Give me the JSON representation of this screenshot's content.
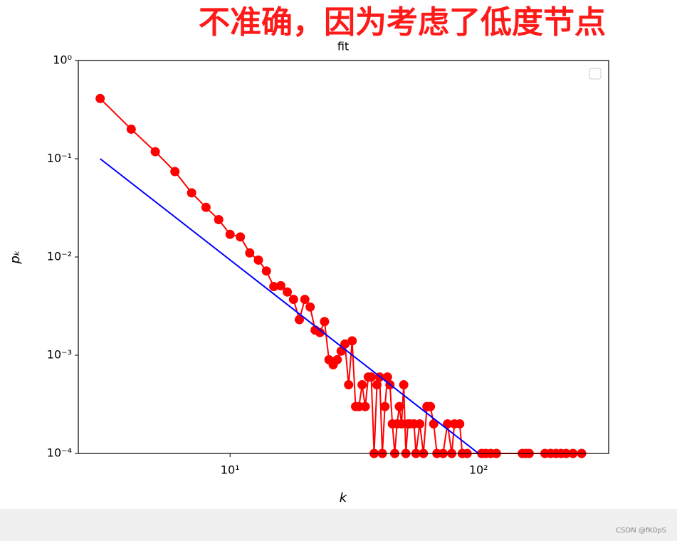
{
  "annotation": "不准确，因为考虑了低度节点",
  "watermark": "CSDN @fK0pS",
  "chart_data": {
    "type": "line",
    "title": "fit",
    "x_label": "k",
    "y_label": "pₖ",
    "x_log": true,
    "y_log": true,
    "xlim": [
      2.45,
      334
    ],
    "ylim": [
      0.0001,
      1
    ],
    "xticks": [
      {
        "value": 10,
        "label": "10¹"
      },
      {
        "value": 100,
        "label": "10²"
      }
    ],
    "yticks": [
      {
        "value": 0.0001,
        "label": "10⁻⁴"
      },
      {
        "value": 0.001,
        "label": "10⁻³"
      },
      {
        "value": 0.01,
        "label": "10⁻²"
      },
      {
        "value": 0.1,
        "label": "10⁻¹"
      },
      {
        "value": 1,
        "label": "10⁰"
      }
    ],
    "series": [
      {
        "color": "#ff0000",
        "marker": true,
        "x": [
          3,
          4,
          5,
          6,
          7,
          8,
          9,
          10,
          11,
          12,
          13,
          14,
          15,
          16,
          17,
          18,
          19,
          20,
          21,
          22,
          23,
          24,
          25,
          26,
          27,
          28,
          29,
          30,
          31,
          32,
          33,
          34,
          35,
          36,
          37,
          38,
          39,
          40,
          41,
          42,
          43,
          44,
          45,
          46,
          47,
          48,
          49,
          50,
          51,
          52,
          53,
          55,
          56,
          58,
          60,
          62,
          64,
          66,
          68,
          72,
          75,
          78,
          80,
          84,
          86,
          90,
          103,
          107,
          112,
          118,
          150,
          155,
          160,
          185,
          195,
          205,
          215,
          225,
          240,
          260
        ],
        "values": [
          0.41,
          0.2,
          0.118,
          0.074,
          0.045,
          0.032,
          0.024,
          0.017,
          0.016,
          0.011,
          0.0093,
          0.0072,
          0.005,
          0.0051,
          0.0044,
          0.0037,
          0.0023,
          0.0037,
          0.0031,
          0.0018,
          0.0017,
          0.0022,
          0.0009,
          0.0008,
          0.0009,
          0.0011,
          0.0013,
          0.0005,
          0.0014,
          0.0003,
          0.0003,
          0.0005,
          0.0003,
          0.0006,
          0.0006,
          0.0001,
          0.0005,
          0.0006,
          0.0001,
          0.0003,
          0.0006,
          0.0005,
          0.0002,
          0.0001,
          0.0002,
          0.0003,
          0.0002,
          0.0005,
          0.0001,
          0.0002,
          0.0002,
          0.0002,
          0.0001,
          0.0002,
          0.0001,
          0.0003,
          0.0003,
          0.0002,
          0.0001,
          0.0001,
          0.0002,
          0.0001,
          0.0002,
          0.0002,
          0.0001,
          0.0001,
          0.0001,
          0.0001,
          0.0001,
          0.0001,
          0.0001,
          0.0001,
          0.0001,
          0.0001,
          0.0001,
          0.0001,
          0.0001,
          0.0001,
          0.0001,
          0.0001
        ]
      },
      {
        "color": "#0000ff",
        "marker": false,
        "x": [
          3,
          100
        ],
        "values": [
          0.1,
          0.0001
        ]
      }
    ]
  }
}
